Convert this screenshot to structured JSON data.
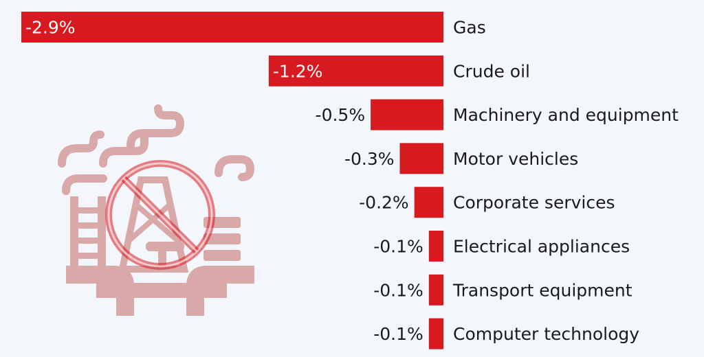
{
  "colors": {
    "background": "#f3f6fa",
    "bar": "#d71920",
    "illustration": "#d9a9a9",
    "text": "#1a1a1a"
  },
  "illustration": {
    "icon": "industrial-plant-with-prohibited-sign-icon"
  },
  "chart_data": {
    "type": "bar",
    "orientation": "horizontal",
    "title": "",
    "xlabel": "",
    "ylabel": "",
    "categories": [
      "Gas",
      "Crude oil",
      "Machinery and equipment",
      "Motor vehicles",
      "Corporate services",
      "Electrical appliances",
      "Transport equipment",
      "Computer technology"
    ],
    "values": [
      -2.9,
      -1.2,
      -0.5,
      -0.3,
      -0.2,
      -0.1,
      -0.1,
      -0.1
    ],
    "value_labels": [
      "-2.9%",
      "-1.2%",
      "-0.5%",
      "-0.3%",
      "-0.2%",
      "-0.1%",
      "-0.1%",
      "-0.1%"
    ],
    "xlim": [
      -2.9,
      0
    ],
    "grid": false,
    "legend": "none"
  }
}
